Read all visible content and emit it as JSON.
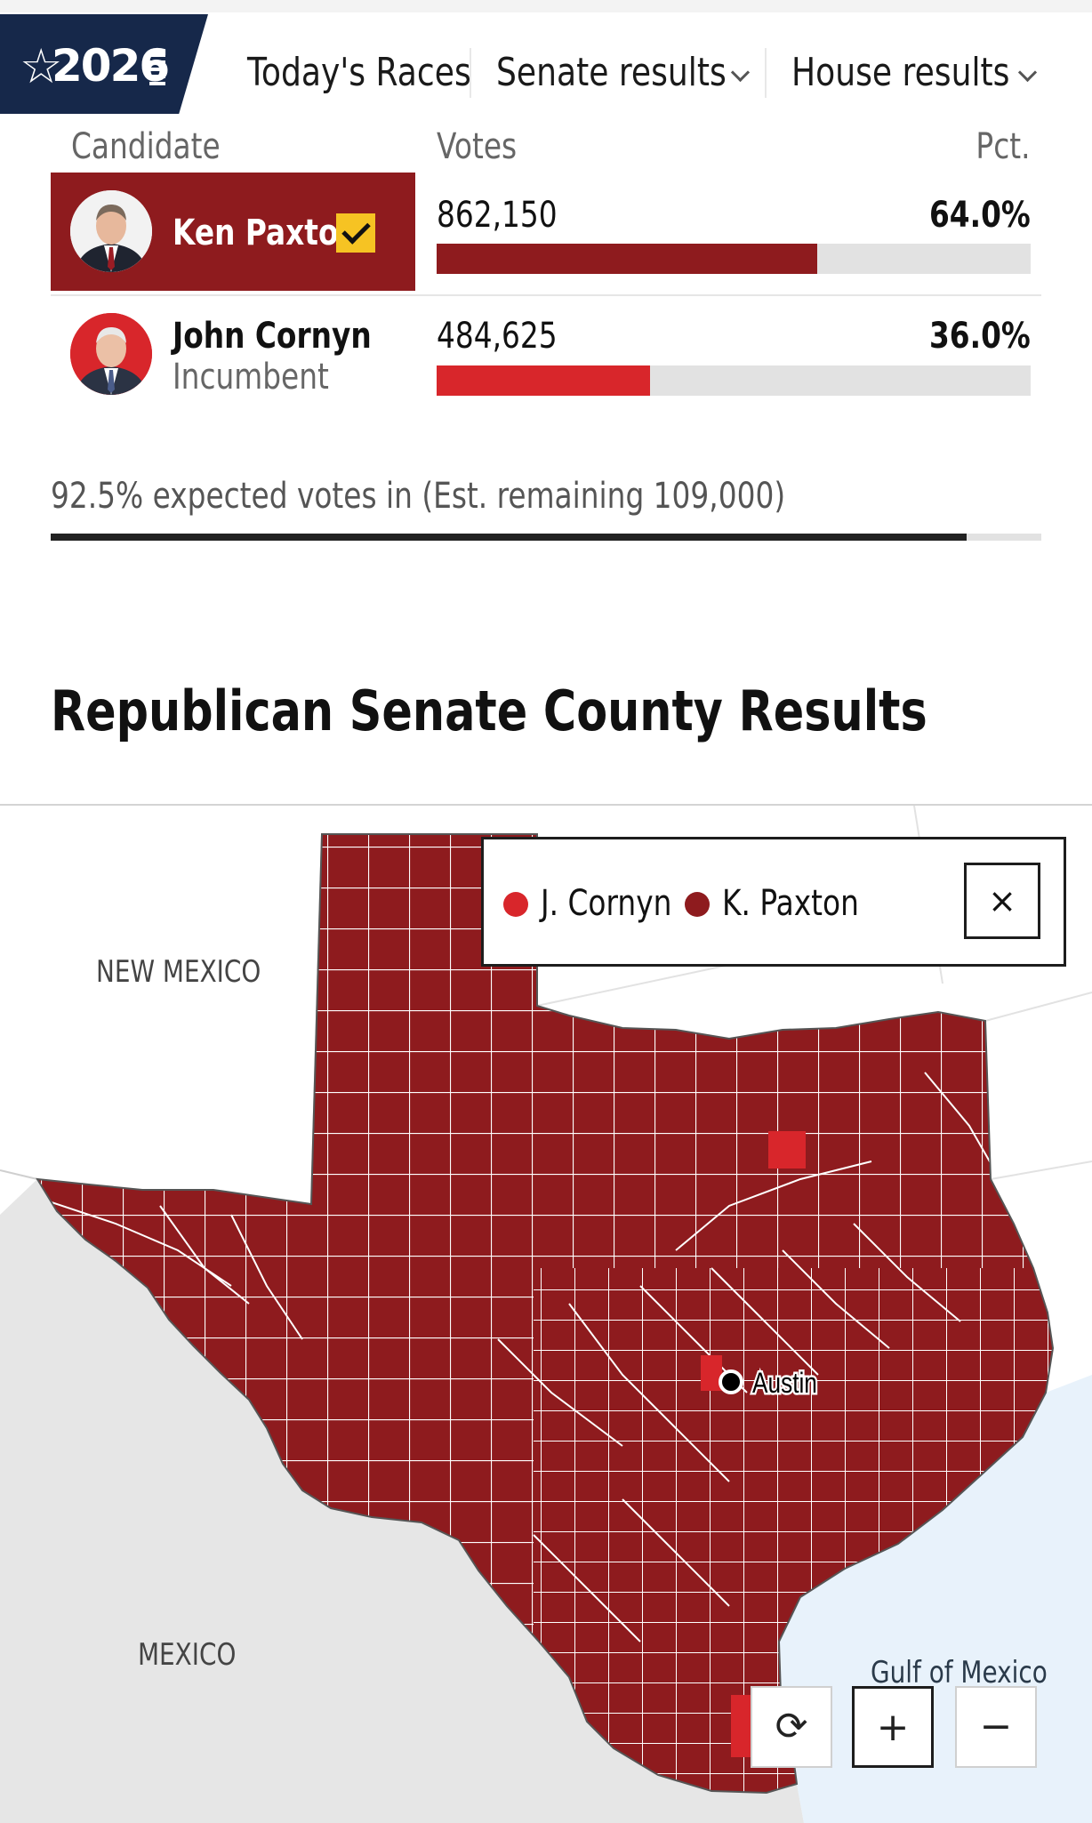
{
  "nav": {
    "logo_text": "2026",
    "items": [
      {
        "label": "Today's Races"
      },
      {
        "label": "Senate results"
      },
      {
        "label": "House results"
      }
    ]
  },
  "table": {
    "headers": {
      "candidate": "Candidate",
      "votes": "Votes",
      "pct": "Pct."
    },
    "candidates": [
      {
        "name": "Ken Paxton",
        "subtitle": "",
        "votes": "862,150",
        "pct": "64.0%",
        "share": 0.64,
        "winner": true,
        "color": "#8e1b1e"
      },
      {
        "name": "John Cornyn",
        "subtitle": "Incumbent",
        "votes": "484,625",
        "pct": "36.0%",
        "share": 0.36,
        "winner": false,
        "color": "#d8262b"
      }
    ]
  },
  "expected": {
    "text": "92.5% expected votes in (Est. remaining 109,000)",
    "fraction": 0.925
  },
  "map_section": {
    "title": "Republican Senate County Results",
    "legend": [
      {
        "label": "J. Cornyn",
        "color": "#d8262b"
      },
      {
        "label": "K. Paxton",
        "color": "#8e1b1e"
      }
    ],
    "close_label": "×",
    "labels": {
      "new_mexico": "NEW MEXICO",
      "mexico": "MEXICO",
      "gulf": "Gulf of Mexico",
      "city": "Austin"
    },
    "controls": {
      "reset": "⟳",
      "zoom_in": "+",
      "zoom_out": "−"
    },
    "colors": {
      "paxton": "#8e1b1e",
      "cornyn": "#d8262b",
      "land": "#e6e6e6",
      "water": "#e8f2fb"
    }
  }
}
